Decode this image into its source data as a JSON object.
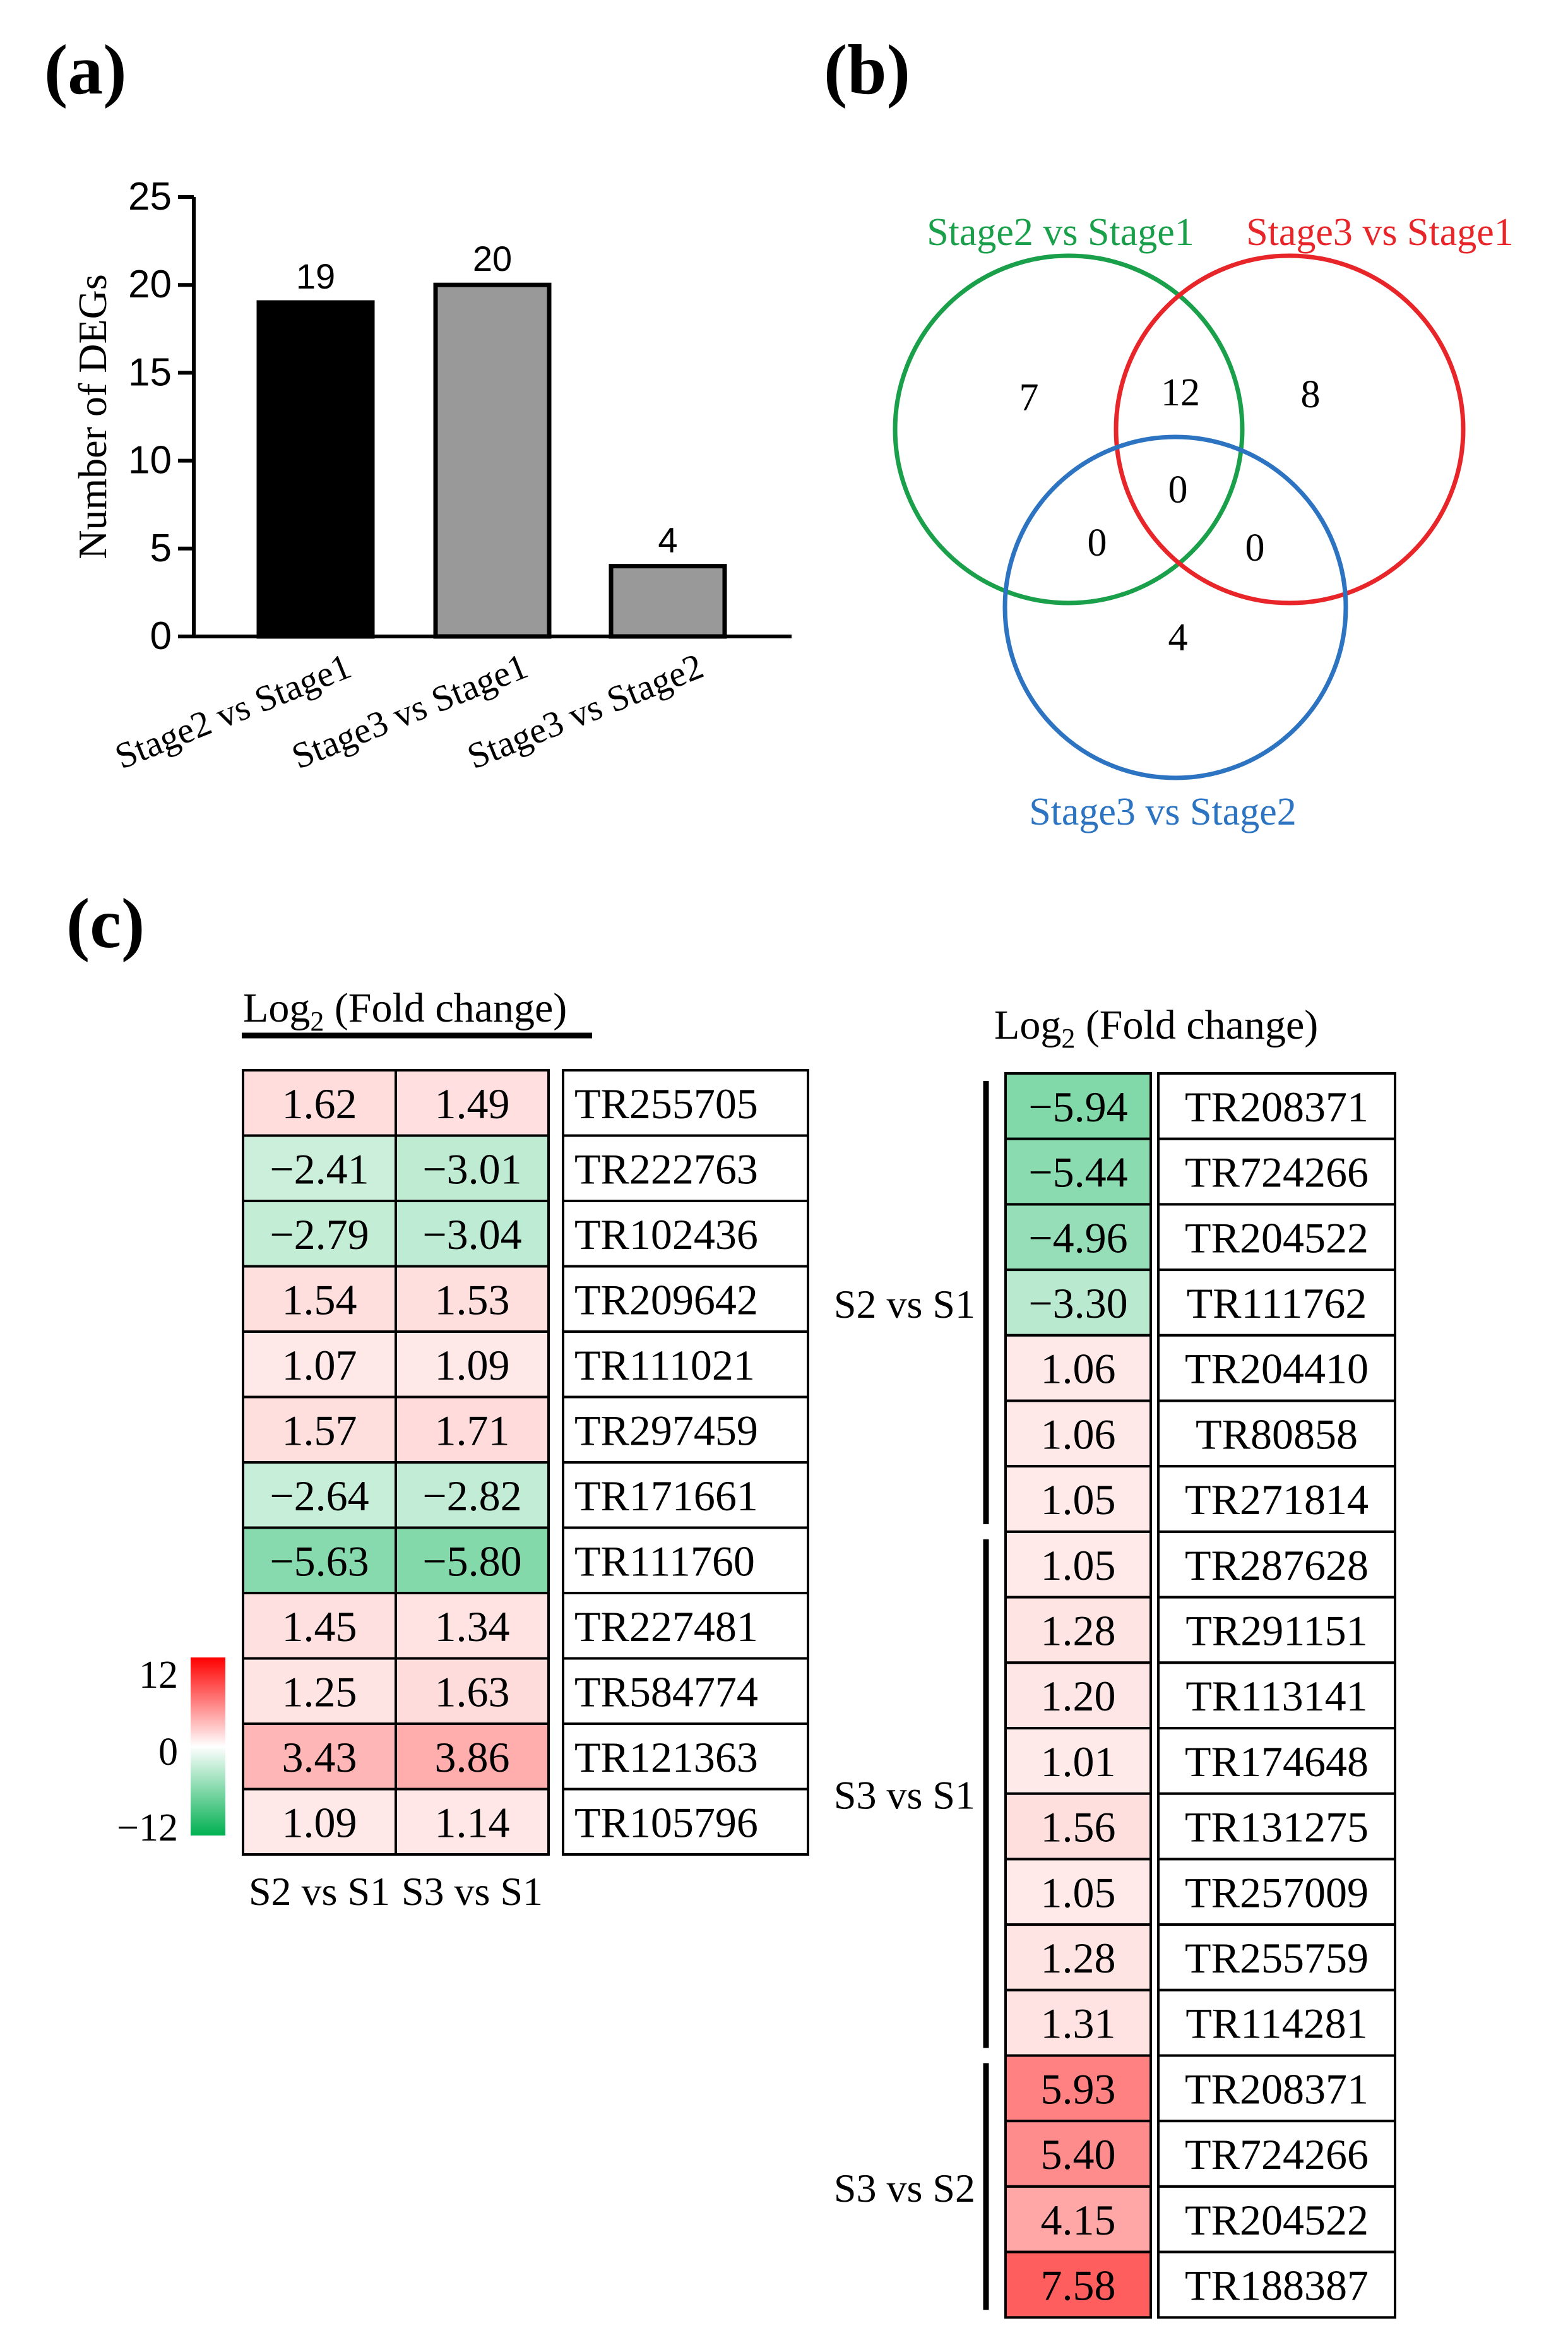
{
  "panels": {
    "a": "(a)",
    "b": "(b)",
    "c": "(c)"
  },
  "chart_data": [
    {
      "type": "bar",
      "panel": "a",
      "ylabel": "Number of DEGs",
      "categories": [
        "Stage2 vs Stage1",
        "Stage3 vs Stage1",
        "Stage3 vs Stage2"
      ],
      "values": [
        19,
        20,
        4
      ],
      "bar_colors": [
        "#000000",
        "#999999",
        "#999999"
      ],
      "ylim": [
        0,
        25
      ],
      "yticks": [
        "0",
        "5",
        "10",
        "15",
        "20",
        "25"
      ],
      "value_labels": [
        "19",
        "20",
        "4"
      ]
    },
    {
      "type": "venn",
      "panel": "b",
      "sets": [
        {
          "name": "Stage2 vs Stage1",
          "color": "#1aa04a"
        },
        {
          "name": "Stage3 vs Stage1",
          "color": "#e8262a"
        },
        {
          "name": "Stage3 vs Stage2",
          "color": "#2c74c2"
        }
      ],
      "regions": {
        "s2_only": "7",
        "s2_s3v1": "12",
        "s3v1_only": "8",
        "all": "0",
        "s2_s3v2": "0",
        "s3v1_s3v2": "0",
        "s3v2_only": "4"
      }
    },
    {
      "type": "heatmap",
      "panel": "c",
      "title_left": "Log",
      "title_sub": "2",
      "title_rest": " (Fold change)",
      "scale": {
        "labels": [
          "12",
          "0",
          "−12"
        ],
        "min": -12,
        "max": 12,
        "colors": [
          "#00b050",
          "#ffffff",
          "#ff0000"
        ]
      },
      "left": {
        "columns": [
          "S2 vs S1",
          "S3 vs S1"
        ],
        "rows": [
          {
            "id": "TR255705",
            "values": [
              1.62,
              1.49
            ],
            "labels": [
              "1.62",
              "1.49"
            ]
          },
          {
            "id": "TR222763",
            "values": [
              -2.41,
              -3.01
            ],
            "labels": [
              "−2.41",
              "−3.01"
            ]
          },
          {
            "id": "TR102436",
            "values": [
              -2.79,
              -3.04
            ],
            "labels": [
              "−2.79",
              "−3.04"
            ]
          },
          {
            "id": "TR209642",
            "values": [
              1.54,
              1.53
            ],
            "labels": [
              "1.54",
              "1.53"
            ]
          },
          {
            "id": "TR111021",
            "values": [
              1.07,
              1.09
            ],
            "labels": [
              "1.07",
              "1.09"
            ]
          },
          {
            "id": "TR297459",
            "values": [
              1.57,
              1.71
            ],
            "labels": [
              "1.57",
              "1.71"
            ]
          },
          {
            "id": "TR171661",
            "values": [
              -2.64,
              -2.82
            ],
            "labels": [
              "−2.64",
              "−2.82"
            ]
          },
          {
            "id": "TR111760",
            "values": [
              -5.63,
              -5.8
            ],
            "labels": [
              "−5.63",
              "−5.80"
            ]
          },
          {
            "id": "TR227481",
            "values": [
              1.45,
              1.34
            ],
            "labels": [
              "1.45",
              "1.34"
            ]
          },
          {
            "id": "TR584774",
            "values": [
              1.25,
              1.63
            ],
            "labels": [
              "1.25",
              "1.63"
            ]
          },
          {
            "id": "TR121363",
            "values": [
              3.43,
              3.86
            ],
            "labels": [
              "3.43",
              "3.86"
            ]
          },
          {
            "id": "TR105796",
            "values": [
              1.09,
              1.14
            ],
            "labels": [
              "1.09",
              "1.14"
            ]
          }
        ]
      },
      "right": {
        "groups": [
          {
            "name": "S2 vs S1",
            "rows": [
              {
                "id": "TR208371",
                "value": -5.94,
                "label": "−5.94"
              },
              {
                "id": "TR724266",
                "value": -5.44,
                "label": "−5.44"
              },
              {
                "id": "TR204522",
                "value": -4.96,
                "label": "−4.96"
              },
              {
                "id": "TR111762",
                "value": -3.3,
                "label": "−3.30"
              },
              {
                "id": "TR204410",
                "value": 1.06,
                "label": "1.06"
              },
              {
                "id": "TR80858",
                "value": 1.06,
                "label": "1.06"
              },
              {
                "id": "TR271814",
                "value": 1.05,
                "label": "1.05"
              }
            ]
          },
          {
            "name": "S3 vs S1",
            "rows": [
              {
                "id": "TR287628",
                "value": 1.05,
                "label": "1.05"
              },
              {
                "id": "TR291151",
                "value": 1.28,
                "label": "1.28"
              },
              {
                "id": "TR113141",
                "value": 1.2,
                "label": "1.20"
              },
              {
                "id": "TR174648",
                "value": 1.01,
                "label": "1.01"
              },
              {
                "id": "TR131275",
                "value": 1.56,
                "label": "1.56"
              },
              {
                "id": "TR257009",
                "value": 1.05,
                "label": "1.05"
              },
              {
                "id": "TR255759",
                "value": 1.28,
                "label": "1.28"
              },
              {
                "id": "TR114281",
                "value": 1.31,
                "label": "1.31"
              }
            ]
          },
          {
            "name": "S3 vs S2",
            "rows": [
              {
                "id": "TR208371",
                "value": 5.93,
                "label": "5.93"
              },
              {
                "id": "TR724266",
                "value": 5.4,
                "label": "5.40"
              },
              {
                "id": "TR204522",
                "value": 4.15,
                "label": "4.15"
              },
              {
                "id": "TR188387",
                "value": 7.58,
                "label": "7.58"
              }
            ]
          }
        ]
      }
    }
  ]
}
